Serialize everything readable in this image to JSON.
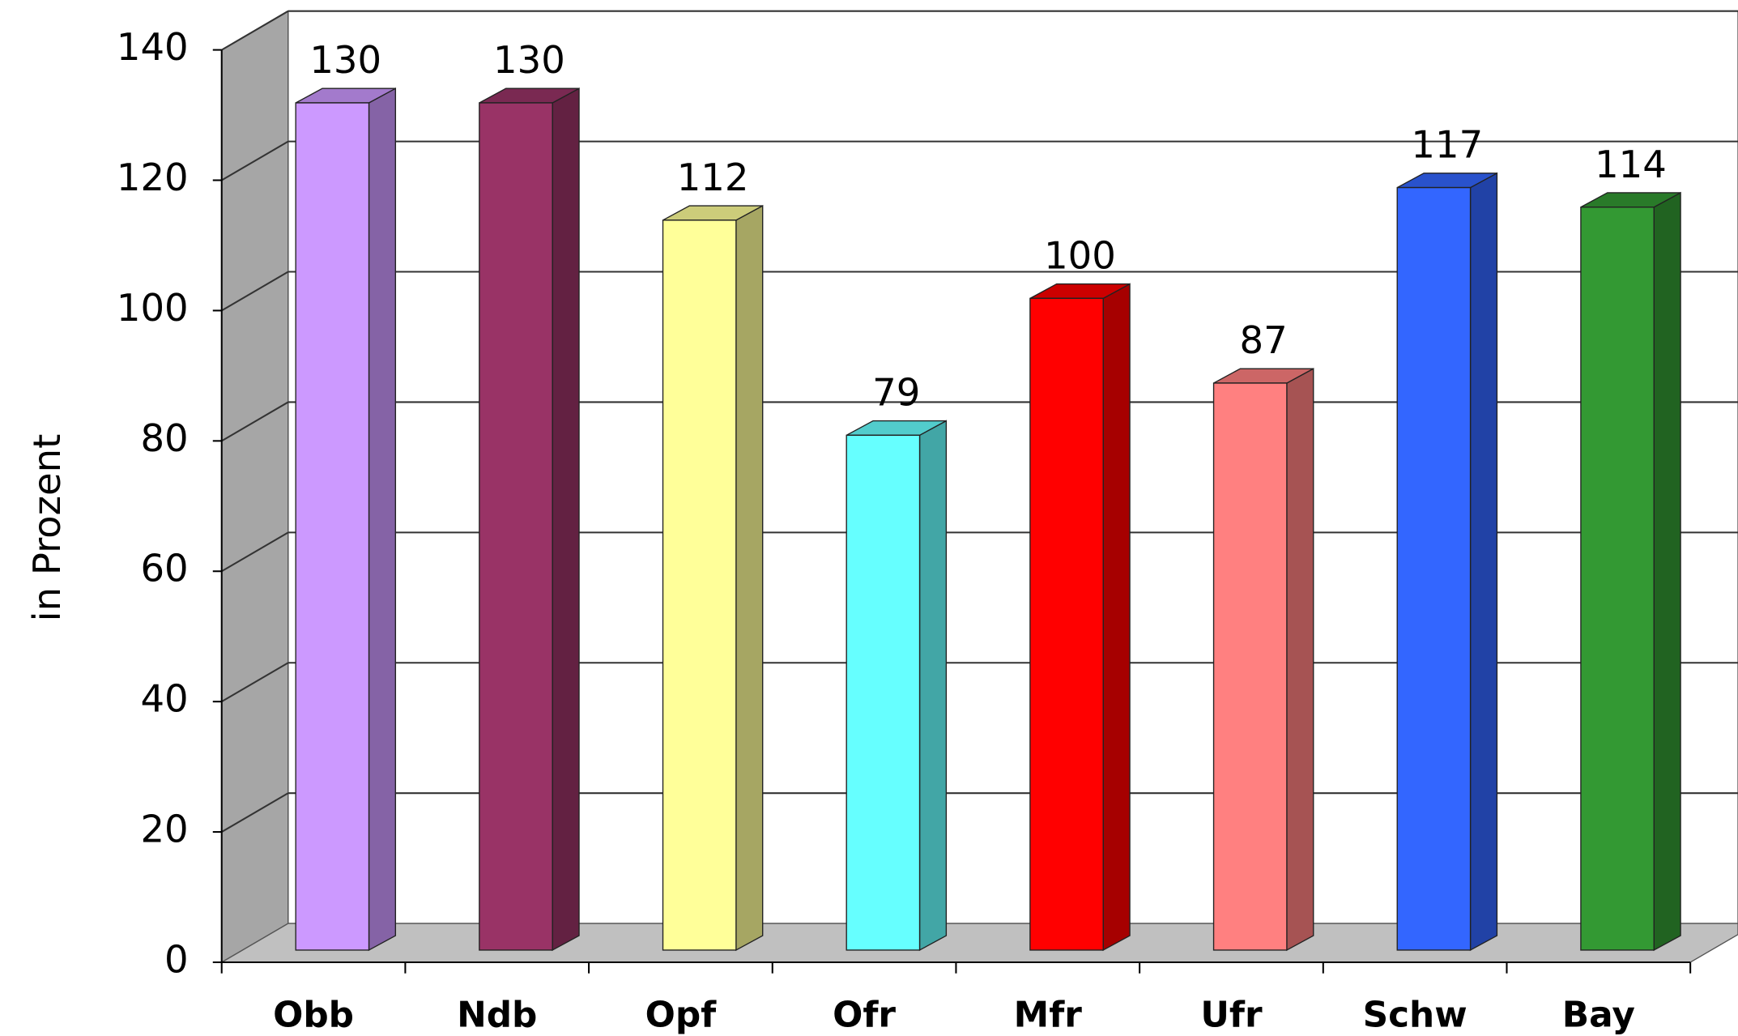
{
  "chart_data": {
    "type": "bar",
    "y_label": "in Prozent",
    "categories": [
      "Obb",
      "Ndb",
      "Opf",
      "Ofr",
      "Mfr",
      "Ufr",
      "Schw",
      "Bay"
    ],
    "values": [
      130,
      130,
      112,
      79,
      100,
      87,
      117,
      114
    ],
    "colors": [
      "#cc99ff",
      "#993366",
      "#ffff99",
      "#66ffff",
      "#ff0000",
      "#ff8080",
      "#3366ff",
      "#339933"
    ],
    "ylim": [
      0,
      140
    ],
    "yticks": [
      0,
      20,
      40,
      60,
      80,
      100,
      120,
      140
    ],
    "grid": true
  }
}
